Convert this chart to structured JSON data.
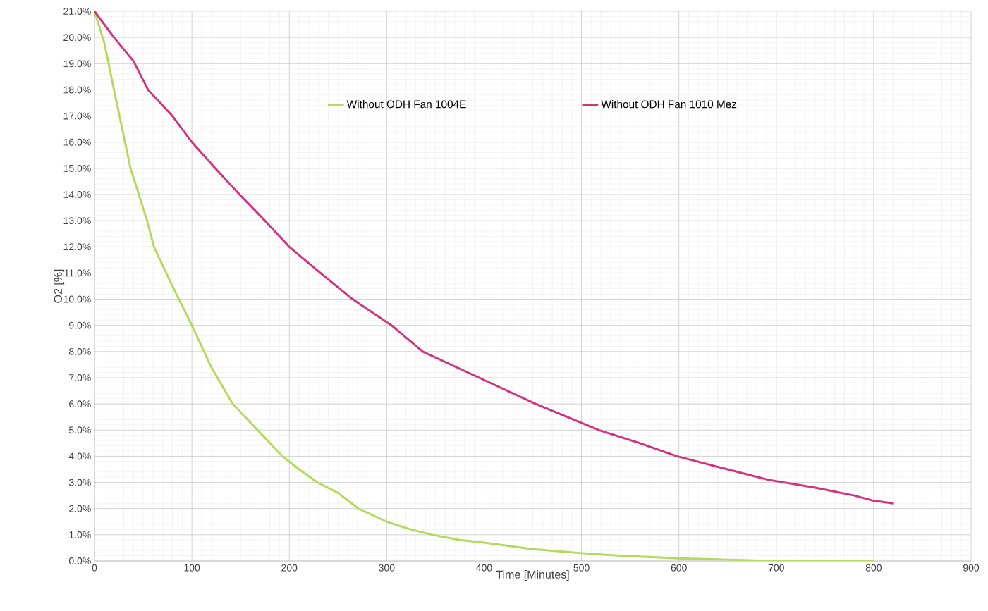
{
  "chart_data": {
    "type": "line",
    "xlabel": "Time [Minutes]",
    "ylabel": "O2 [%]",
    "series": [
      {
        "name": "Without ODH Fan 1004E",
        "color": "#b5d95a",
        "x": [
          0,
          10,
          20,
          37,
          54,
          61,
          80,
          100,
          120,
          142,
          170,
          193,
          210,
          229,
          250,
          271,
          300,
          325,
          347,
          375,
          400,
          450,
          500,
          540,
          600,
          650,
          700,
          750,
          800
        ],
        "values": [
          21.0,
          19.8,
          18.0,
          15.0,
          13.0,
          12.0,
          10.5,
          9.0,
          7.4,
          6.0,
          4.9,
          4.0,
          3.5,
          3.0,
          2.6,
          2.0,
          1.5,
          1.2,
          1.0,
          0.8,
          0.7,
          0.45,
          0.3,
          0.2,
          0.1,
          0.05,
          0.0,
          0.0,
          0.0
        ]
      },
      {
        "name": "Without ODH Fan 1010 Mez",
        "color": "#d6317a",
        "x": [
          0,
          20,
          40,
          55,
          80,
          100,
          124,
          149,
          175,
          200,
          232,
          265,
          305,
          337,
          395,
          453,
          518,
          560,
          598,
          650,
          692,
          740,
          780,
          800,
          820
        ],
        "values": [
          21.0,
          20.0,
          19.1,
          18.0,
          17.0,
          16.0,
          15.0,
          14.0,
          13.0,
          12.0,
          11.0,
          10.0,
          9.0,
          8.0,
          7.0,
          6.0,
          5.0,
          4.5,
          4.0,
          3.5,
          3.1,
          2.8,
          2.5,
          2.3,
          2.2
        ]
      }
    ],
    "xlim": [
      0,
      900
    ],
    "xticks": [
      0,
      100,
      200,
      300,
      400,
      500,
      600,
      700,
      800,
      900
    ],
    "ylim": [
      0,
      21
    ],
    "yticks": [
      {
        "value": 0,
        "label": "0.0%"
      },
      {
        "value": 1,
        "label": "1.0%"
      },
      {
        "value": 2,
        "label": "2.0%"
      },
      {
        "value": 3,
        "label": "3.0%"
      },
      {
        "value": 4,
        "label": "4.0%"
      },
      {
        "value": 5,
        "label": "5.0%"
      },
      {
        "value": 6,
        "label": "6.0%"
      },
      {
        "value": 7,
        "label": "7.0%"
      },
      {
        "value": 8,
        "label": "8.0%"
      },
      {
        "value": 9,
        "label": "9.0%"
      },
      {
        "value": 10,
        "label": "10.0%"
      },
      {
        "value": 11,
        "label": "11.0%"
      },
      {
        "value": 12,
        "label": "12.0%"
      },
      {
        "value": 13,
        "label": "13.0%"
      },
      {
        "value": 14,
        "label": "14.0%"
      },
      {
        "value": 15,
        "label": "15.0%"
      },
      {
        "value": 16,
        "label": "16.0%"
      },
      {
        "value": 17,
        "label": "17.0%"
      },
      {
        "value": 18,
        "label": "18.0%"
      },
      {
        "value": 19,
        "label": "19.0%"
      },
      {
        "value": 20,
        "label": "20.0%"
      },
      {
        "value": 21,
        "label": "21.0%"
      }
    ],
    "grid": true,
    "legend": "top",
    "marker": "none",
    "line_style": "solid"
  }
}
